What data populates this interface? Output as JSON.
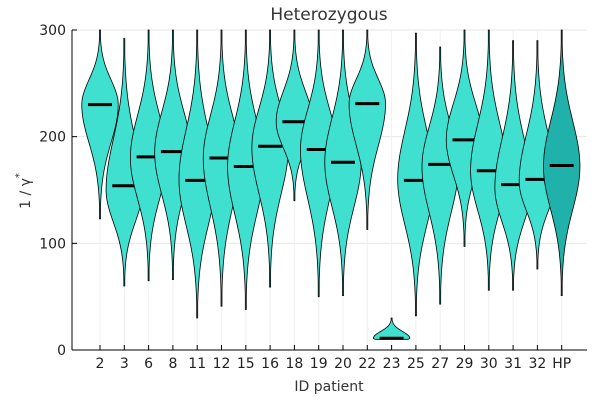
{
  "chart_data": {
    "type": "violin",
    "title": "Heterozygous",
    "xlabel": "ID patient",
    "ylabel_main": "1 / γ",
    "ylabel_sup": "*",
    "ylim": [
      0,
      300
    ],
    "yticks": [
      0,
      100,
      200,
      300
    ],
    "grid": true,
    "legend": "none",
    "colors": {
      "patient": "#40e0d0",
      "hp": "#20b2aa",
      "median": "#000000",
      "outline": "#000000",
      "grid": "#e6e6e6"
    },
    "categories": [
      "2",
      "3",
      "6",
      "8",
      "11",
      "12",
      "15",
      "16",
      "18",
      "19",
      "20",
      "22",
      "23",
      "25",
      "27",
      "29",
      "30",
      "31",
      "32",
      "HP"
    ],
    "series": [
      {
        "id": "2",
        "min": 123,
        "max": 300,
        "median": 230,
        "mode": 230,
        "halfwidth": 0.45
      },
      {
        "id": "3",
        "min": 60,
        "max": 292,
        "median": 154,
        "mode": 150,
        "halfwidth": 0.45
      },
      {
        "id": "6",
        "min": 65,
        "max": 300,
        "median": 181,
        "mode": 180,
        "halfwidth": 0.45
      },
      {
        "id": "8",
        "min": 66,
        "max": 300,
        "median": 186,
        "mode": 185,
        "halfwidth": 0.45
      },
      {
        "id": "11",
        "min": 30,
        "max": 300,
        "median": 159,
        "mode": 160,
        "halfwidth": 0.45
      },
      {
        "id": "12",
        "min": 41,
        "max": 300,
        "median": 180,
        "mode": 180,
        "halfwidth": 0.45
      },
      {
        "id": "15",
        "min": 38,
        "max": 300,
        "median": 172,
        "mode": 172,
        "halfwidth": 0.45
      },
      {
        "id": "16",
        "min": 59,
        "max": 300,
        "median": 191,
        "mode": 190,
        "halfwidth": 0.45
      },
      {
        "id": "18",
        "min": 140,
        "max": 300,
        "median": 214,
        "mode": 214,
        "halfwidth": 0.45
      },
      {
        "id": "19",
        "min": 50,
        "max": 300,
        "median": 188,
        "mode": 188,
        "halfwidth": 0.45
      },
      {
        "id": "20",
        "min": 51,
        "max": 300,
        "median": 176,
        "mode": 176,
        "halfwidth": 0.45
      },
      {
        "id": "22",
        "min": 113,
        "max": 300,
        "median": 231,
        "mode": 231,
        "halfwidth": 0.45
      },
      {
        "id": "23",
        "min": 10,
        "max": 30,
        "median": 11,
        "mode": 11,
        "halfwidth": 0.45
      },
      {
        "id": "25",
        "min": 32,
        "max": 297,
        "median": 159,
        "mode": 160,
        "halfwidth": 0.45
      },
      {
        "id": "27",
        "min": 43,
        "max": 284,
        "median": 174,
        "mode": 172,
        "halfwidth": 0.45
      },
      {
        "id": "29",
        "min": 97,
        "max": 300,
        "median": 197,
        "mode": 197,
        "halfwidth": 0.45
      },
      {
        "id": "30",
        "min": 56,
        "max": 300,
        "median": 168,
        "mode": 168,
        "halfwidth": 0.45
      },
      {
        "id": "31",
        "min": 56,
        "max": 290,
        "median": 155,
        "mode": 152,
        "halfwidth": 0.45
      },
      {
        "id": "32",
        "min": 76,
        "max": 290,
        "median": 160,
        "mode": 158,
        "halfwidth": 0.45
      },
      {
        "id": "HP",
        "min": 51,
        "max": 300,
        "median": 173,
        "mode": 172,
        "halfwidth": 0.45
      }
    ]
  }
}
